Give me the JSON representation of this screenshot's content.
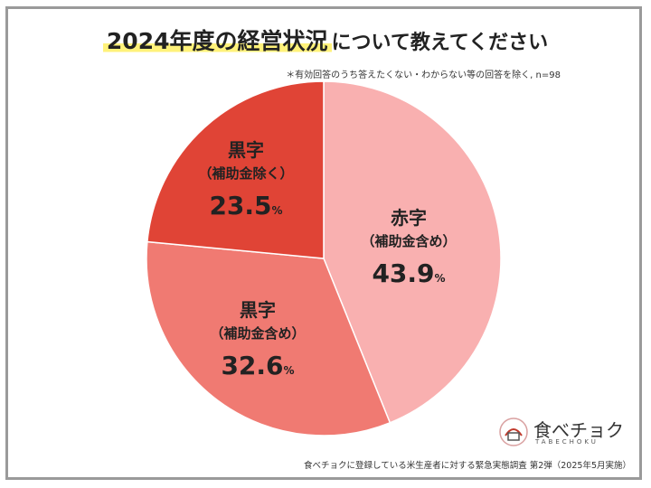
{
  "title": {
    "main": "2024年度の経営状況",
    "rest": "について教えてください"
  },
  "note": "＊有効回答のうち答えたくない・わからない等の回答を除く, n=98",
  "chart_data": {
    "type": "pie",
    "unit": "%",
    "slices": [
      {
        "line1": "赤字",
        "line2": "（補助金含め）",
        "value": 43.9,
        "value_label": "43.9",
        "color": "#f9b0b0"
      },
      {
        "line1": "黒字",
        "line2": "（補助金含め）",
        "value": 32.6,
        "value_label": "32.6",
        "color": "#f07a72"
      },
      {
        "line1": "黒字",
        "line2": "（補助金除く）",
        "value": 23.5,
        "value_label": "23.5",
        "color": "#e04436"
      }
    ]
  },
  "logo": {
    "text": "食べチョク",
    "sub": "TABECHOKU"
  },
  "footer": "食べチョクに登録している米生産者に対する緊急実態調査 第2弾（2025年5月実施）"
}
